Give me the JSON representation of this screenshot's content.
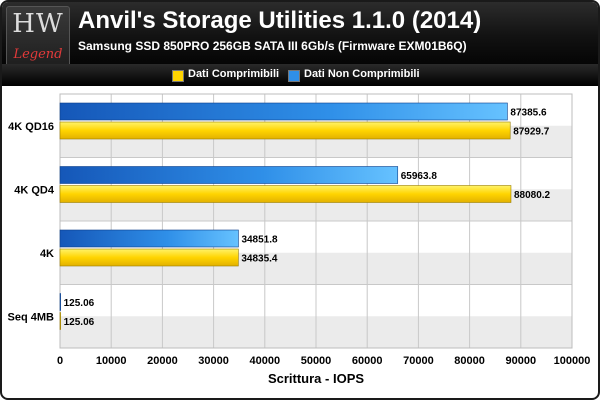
{
  "header": {
    "logo_mark": "HW",
    "logo_text": "Legend",
    "title": "Anvil's Storage Utilities 1.1.0 (2014)",
    "subtitle": "Samsung SSD 850PRO 256GB SATA III 6Gb/s (Firmware EXM01B6Q)"
  },
  "legend": {
    "items": [
      {
        "label": "Dati Comprimibili",
        "color": "#ffd400"
      },
      {
        "label": "Dati Non Comprimibili",
        "color": "#2f8fe8"
      }
    ]
  },
  "colors": {
    "yellow_light": "#fff36a",
    "yellow": "#ffd400",
    "yellow_dark": "#e2b100",
    "blue_light": "#66c2ff",
    "blue": "#2f8fe8",
    "blue_dark": "#1557b8",
    "band": "#ebebeb"
  },
  "chart_data": {
    "type": "bar",
    "orientation": "horizontal",
    "categories": [
      "4K QD16",
      "4K QD4",
      "4K",
      "Seq 4MB"
    ],
    "series": [
      {
        "name": "Dati Non Comprimibili",
        "values": [
          87385.6,
          65963.8,
          34851.8,
          125.06
        ]
      },
      {
        "name": "Dati Comprimibili",
        "values": [
          87929.7,
          88080.2,
          34835.4,
          125.06
        ]
      }
    ],
    "value_labels": {
      "Dati Non Comprimibili": [
        "87385.6",
        "65963.8",
        "34851.8",
        "125.06"
      ],
      "Dati Comprimibili": [
        "87929.7",
        "88080.2",
        "34835.4",
        "125.06"
      ]
    },
    "xlabel": "Scrittura - IOPS",
    "xlim": [
      0,
      100000
    ],
    "xticks": [
      0,
      10000,
      20000,
      30000,
      40000,
      50000,
      60000,
      70000,
      80000,
      90000,
      100000
    ],
    "grid": true,
    "legend_position": "top"
  }
}
